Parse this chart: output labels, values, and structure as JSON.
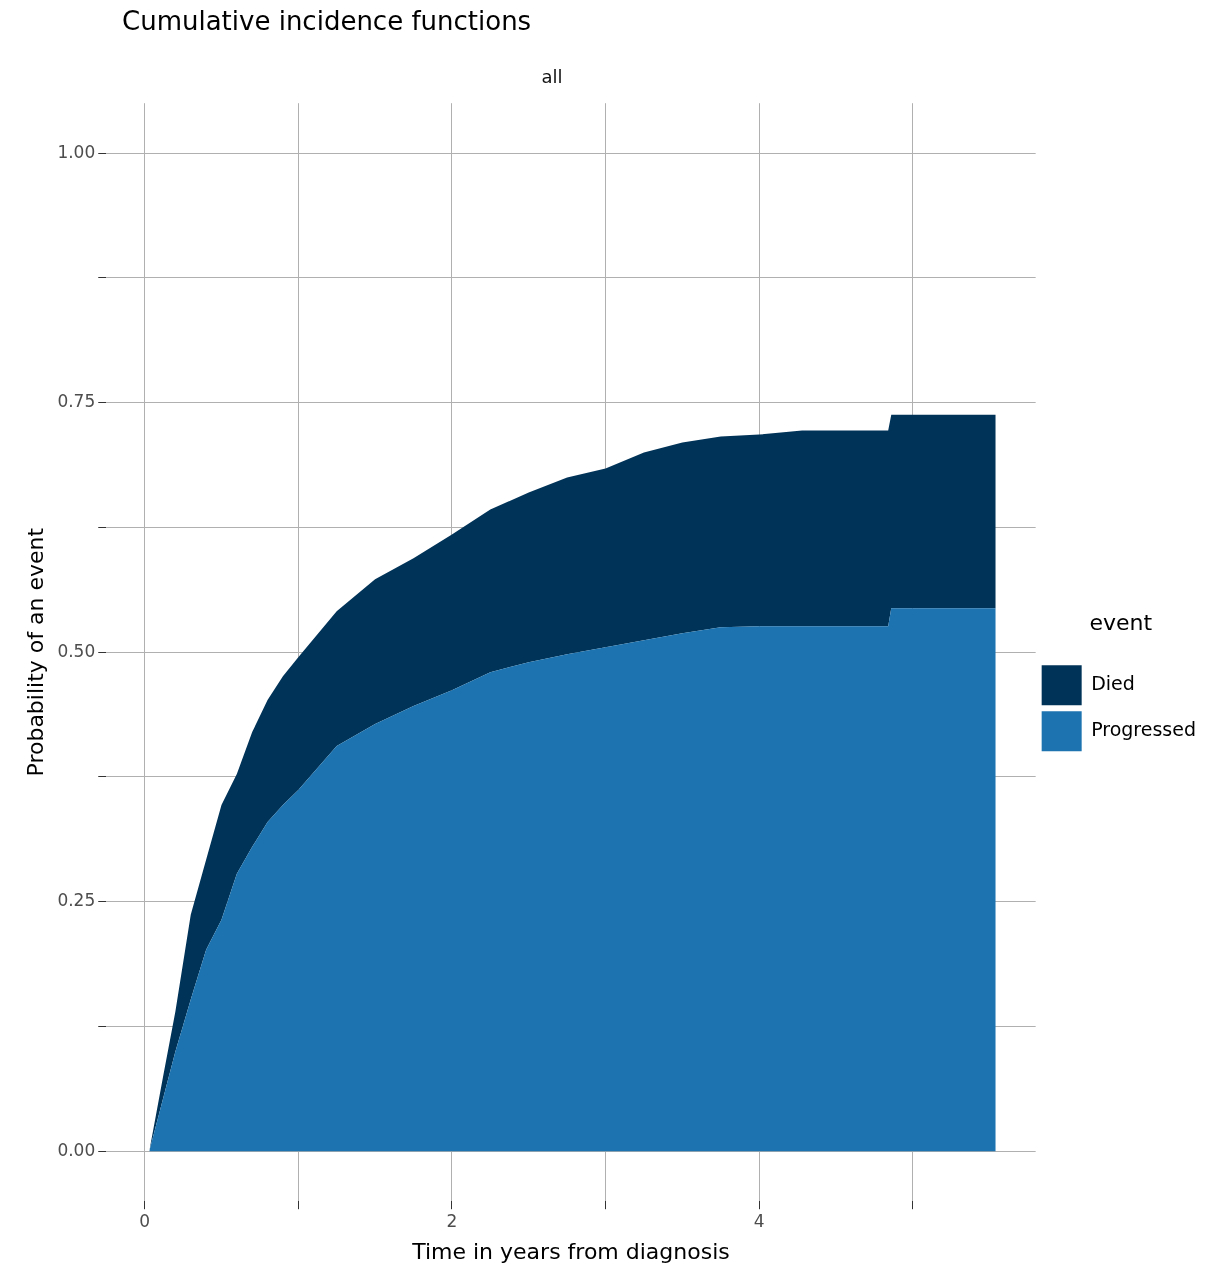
{
  "chart_data": {
    "type": "area",
    "title": "Cumulative incidence functions",
    "subtitle": "all",
    "xlabel": "Time in years from diagnosis",
    "ylabel": "Probability of an event",
    "legend_title": "event",
    "stacked": true,
    "legend": "right",
    "grid": true,
    "x": [
      0.03,
      0.12,
      0.2,
      0.3,
      0.4,
      0.5,
      0.6,
      0.7,
      0.8,
      0.9,
      1.0,
      1.25,
      1.5,
      1.75,
      2.0,
      2.25,
      2.5,
      2.75,
      3.0,
      3.25,
      3.5,
      3.75,
      4.0,
      4.28,
      4.84,
      4.86,
      5.54
    ],
    "series": [
      {
        "name": "Progressed",
        "color": "#1c73b0",
        "values": [
          0,
          0.053,
          0.1,
          0.152,
          0.202,
          0.232,
          0.278,
          0.305,
          0.33,
          0.347,
          0.362,
          0.406,
          0.428,
          0.446,
          0.462,
          0.48,
          0.49,
          0.498,
          0.505,
          0.512,
          0.519,
          0.525,
          0.526,
          0.526,
          0.526,
          0.544,
          0.544
        ]
      },
      {
        "name": "Died",
        "color": "#003358",
        "values": [
          0,
          0.022,
          0.04,
          0.085,
          0.09,
          0.115,
          0.1,
          0.115,
          0.122,
          0.129,
          0.133,
          0.135,
          0.145,
          0.148,
          0.156,
          0.163,
          0.17,
          0.177,
          0.179,
          0.188,
          0.191,
          0.191,
          0.192,
          0.196,
          0.196,
          0.194,
          0.194
        ]
      }
    ],
    "xlim": [
      -0.25,
      5.8
    ],
    "xticks": [
      0,
      {
        "value": 1,
        "label": null
      },
      2,
      {
        "value": 3,
        "label": null
      },
      4,
      {
        "value": 5,
        "label": null
      }
    ],
    "ylim": [
      -0.05,
      1.05
    ],
    "yticks": [
      {
        "value": 0,
        "label": "0.00"
      },
      {
        "value": 0.125,
        "label": null
      },
      0.25,
      {
        "value": 0.375,
        "label": null
      },
      {
        "value": 0.5,
        "label": "0.50"
      },
      {
        "value": 0.625,
        "label": null
      },
      0.75,
      {
        "value": 0.875,
        "label": null
      },
      {
        "value": 1,
        "label": "1.00"
      }
    ]
  }
}
